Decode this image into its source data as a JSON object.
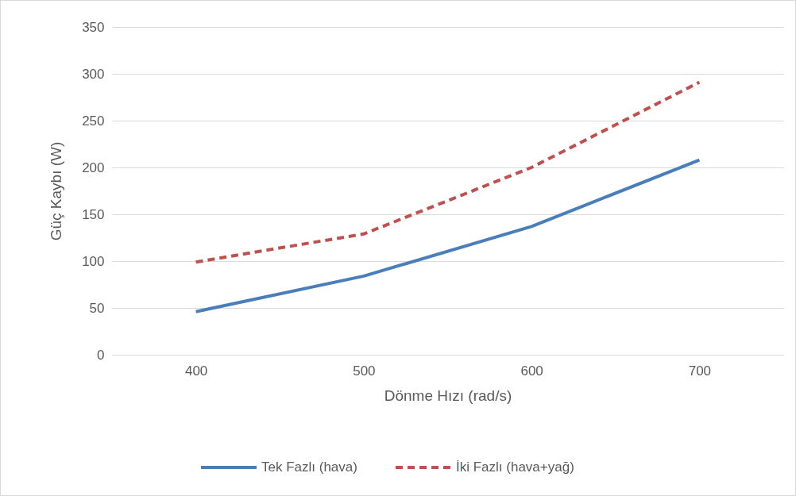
{
  "chart_data": {
    "type": "line",
    "xlabel": "Dönme Hızı (rad/s)",
    "ylabel": "Güç Kaybı (W)",
    "categories": [
      "400",
      "500",
      "600",
      "700"
    ],
    "series": [
      {
        "name": "Tek Fazlı (hava)",
        "color": "#4a7ebb",
        "line_style": "solid",
        "values": [
          46,
          84,
          137,
          208
        ]
      },
      {
        "name": "İki Fazlı (hava+yağ)",
        "color": "#c0504d",
        "line_style": "dashed",
        "values": [
          99,
          129,
          200,
          291
        ]
      }
    ],
    "ylim": [
      0,
      350
    ],
    "yticks": [
      0,
      50,
      100,
      150,
      200,
      250,
      300,
      350
    ],
    "grid": "y",
    "legend": "bottom"
  }
}
